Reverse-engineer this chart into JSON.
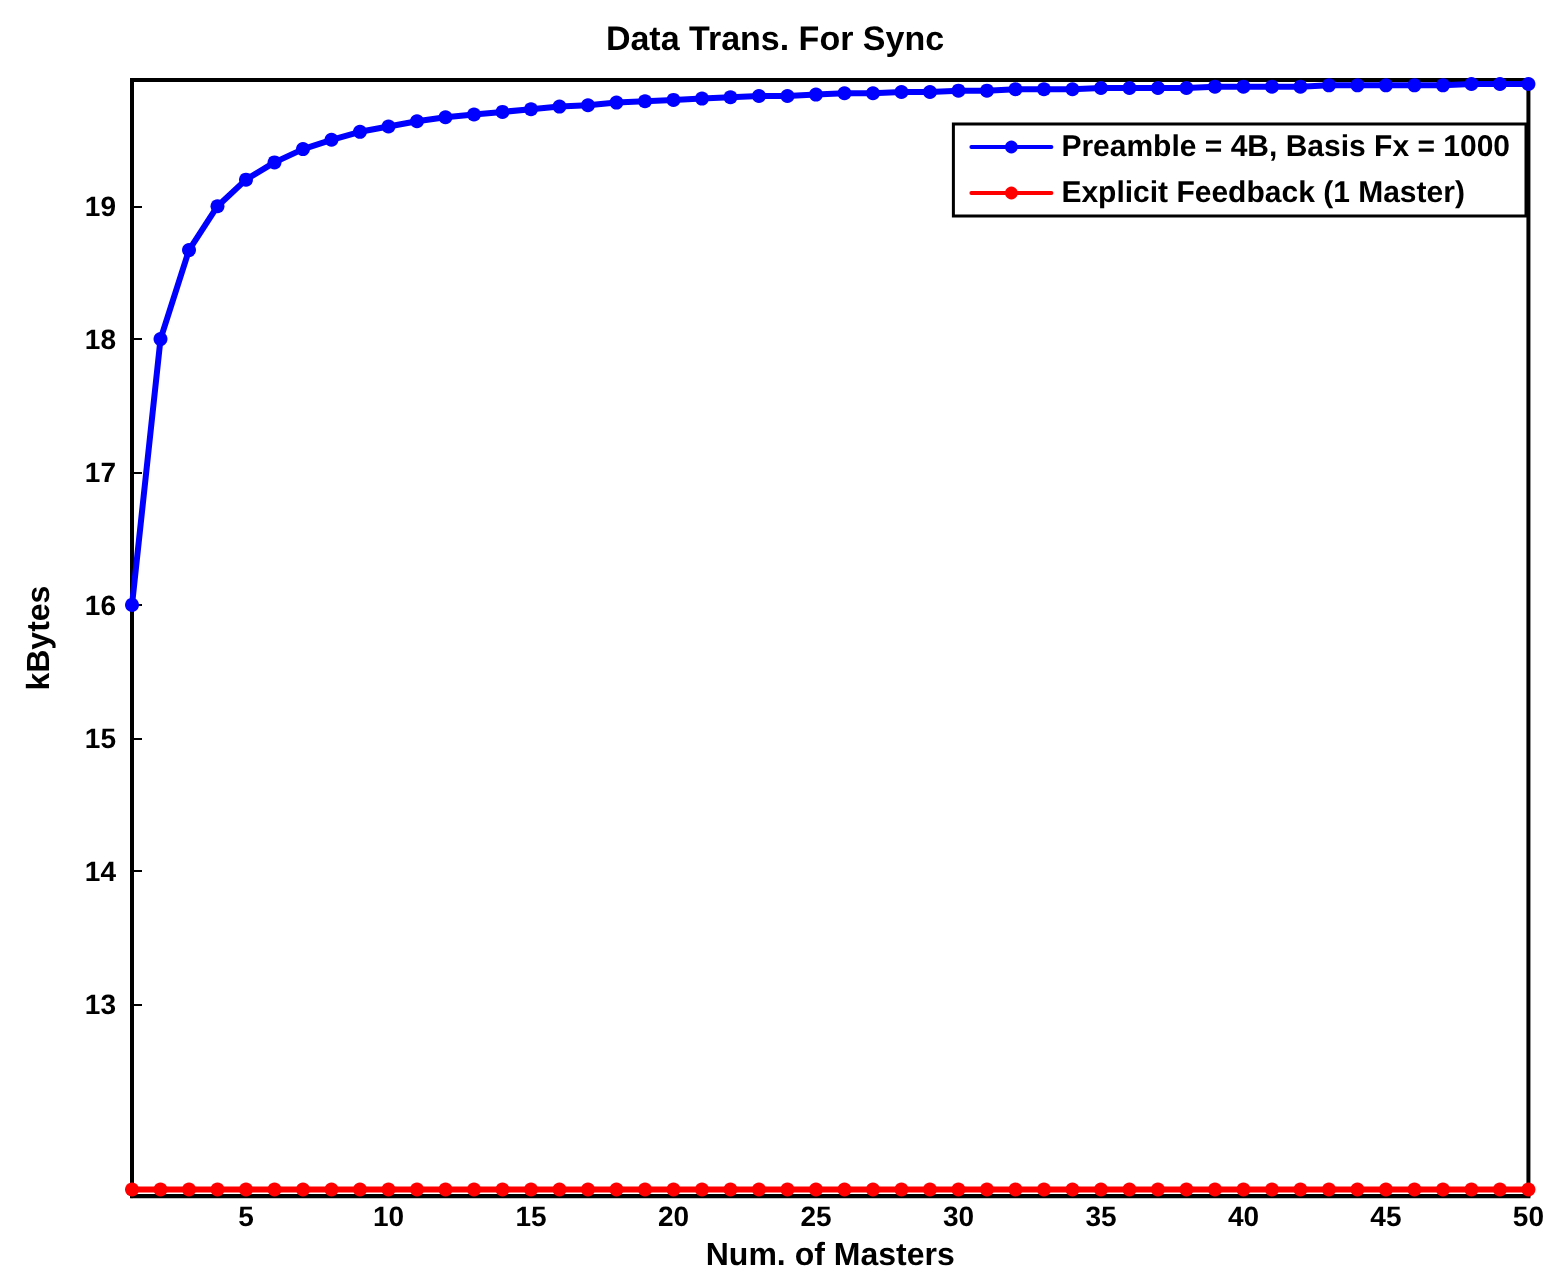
{
  "chart_data": {
    "type": "line",
    "title": "Data Trans. For Sync",
    "xlabel": "Num. of Masters",
    "ylabel": "kBytes",
    "x": [
      1,
      2,
      3,
      4,
      5,
      6,
      7,
      8,
      9,
      10,
      11,
      12,
      13,
      14,
      15,
      16,
      17,
      18,
      19,
      20,
      21,
      22,
      23,
      24,
      25,
      26,
      27,
      28,
      29,
      30,
      31,
      32,
      33,
      34,
      35,
      36,
      37,
      38,
      39,
      40,
      41,
      42,
      43,
      44,
      45,
      46,
      47,
      48,
      49,
      50
    ],
    "series": [
      {
        "name": "Preamble = 4B, Basis Fx = 1000",
        "color": "#0000ff",
        "values": [
          16,
          18,
          18.67,
          19,
          19.2,
          19.33,
          19.43,
          19.5,
          19.56,
          19.6,
          19.64,
          19.67,
          19.69,
          19.71,
          19.73,
          19.75,
          19.76,
          19.78,
          19.79,
          19.8,
          19.81,
          19.82,
          19.83,
          19.83,
          19.84,
          19.85,
          19.85,
          19.86,
          19.86,
          19.87,
          19.87,
          19.88,
          19.88,
          19.88,
          19.89,
          19.89,
          19.89,
          19.89,
          19.9,
          19.9,
          19.9,
          19.9,
          19.91,
          19.91,
          19.91,
          19.91,
          19.91,
          19.92,
          19.92,
          19.92
        ]
      },
      {
        "name": "Explicit Feedback (1 Master)",
        "color": "#ff0000",
        "values": [
          11.6,
          11.6,
          11.6,
          11.6,
          11.6,
          11.6,
          11.6,
          11.6,
          11.6,
          11.6,
          11.6,
          11.6,
          11.6,
          11.6,
          11.6,
          11.6,
          11.6,
          11.6,
          11.6,
          11.6,
          11.6,
          11.6,
          11.6,
          11.6,
          11.6,
          11.6,
          11.6,
          11.6,
          11.6,
          11.6,
          11.6,
          11.6,
          11.6,
          11.6,
          11.6,
          11.6,
          11.6,
          11.6,
          11.6,
          11.6,
          11.6,
          11.6,
          11.6,
          11.6,
          11.6,
          11.6,
          11.6,
          11.6,
          11.6,
          11.6
        ]
      }
    ],
    "xlim": [
      1,
      50
    ],
    "xticks": [
      5,
      10,
      15,
      20,
      25,
      30,
      35,
      40,
      45,
      50
    ],
    "ylim": [
      11.55,
      19.95
    ],
    "yticks": [
      13,
      14,
      15,
      16,
      17,
      18,
      19
    ],
    "legend": "top right",
    "marker": "circle",
    "line_style": "solid",
    "grid": false
  }
}
